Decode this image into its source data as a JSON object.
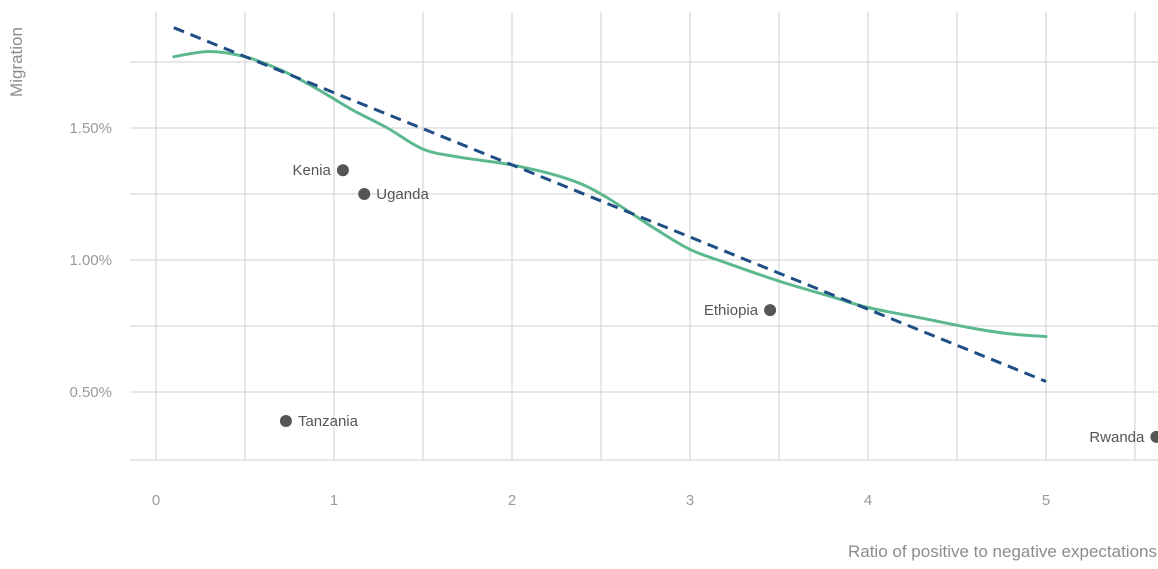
{
  "chart_data": {
    "type": "scatter",
    "xlabel": "Ratio of positive to negative expectations",
    "ylabel": "Migration",
    "xlim": [
      -0.15,
      5.65
    ],
    "ylim": [
      0.25,
      1.93
    ],
    "x_ticks": [
      {
        "value": 0,
        "label": "0"
      },
      {
        "value": 1,
        "label": "1"
      },
      {
        "value": 2,
        "label": "2"
      },
      {
        "value": 3,
        "label": "3"
      },
      {
        "value": 4,
        "label": "4"
      },
      {
        "value": 5,
        "label": "5"
      }
    ],
    "y_ticks": [
      {
        "value": 0.5,
        "label": "0.50%"
      },
      {
        "value": 1.0,
        "label": "1.00%"
      },
      {
        "value": 1.5,
        "label": "1.50%"
      }
    ],
    "x_minor_grid": [
      0.5,
      1.5,
      2.5,
      3.5,
      4.5,
      5.5
    ],
    "y_minor_grid": [
      0.75,
      1.25,
      1.75
    ],
    "grid": true,
    "points": [
      {
        "name": "Kenia",
        "x": 1.05,
        "y": 1.34,
        "label_side": "left"
      },
      {
        "name": "Uganda",
        "x": 1.17,
        "y": 1.25,
        "label_side": "right"
      },
      {
        "name": "Ethiopia",
        "x": 3.45,
        "y": 0.81,
        "label_side": "left"
      },
      {
        "name": "Tanzania",
        "x": 0.73,
        "y": 0.39,
        "label_side": "right"
      },
      {
        "name": "Rwanda",
        "x": 5.62,
        "y": 0.33,
        "label_side": "left"
      }
    ],
    "trend_line": {
      "style": "dashed",
      "color": "#1f4e85",
      "x": [
        0.1,
        5.0
      ],
      "y": [
        1.88,
        0.54
      ]
    },
    "smooth_line": {
      "style": "solid",
      "color": "#5cb88f",
      "x": [
        0.1,
        0.3,
        0.5,
        0.7,
        0.9,
        1.1,
        1.3,
        1.5,
        1.7,
        2.0,
        2.3,
        2.5,
        2.8,
        3.0,
        3.2,
        3.5,
        3.8,
        4.0,
        4.3,
        4.6,
        4.8,
        5.0
      ],
      "y": [
        1.77,
        1.79,
        1.77,
        1.72,
        1.65,
        1.57,
        1.5,
        1.42,
        1.39,
        1.36,
        1.31,
        1.25,
        1.12,
        1.04,
        0.99,
        0.92,
        0.86,
        0.82,
        0.78,
        0.74,
        0.72,
        0.71
      ]
    },
    "colors": {
      "grid": "#cfcfcf",
      "point": "#555555"
    }
  }
}
